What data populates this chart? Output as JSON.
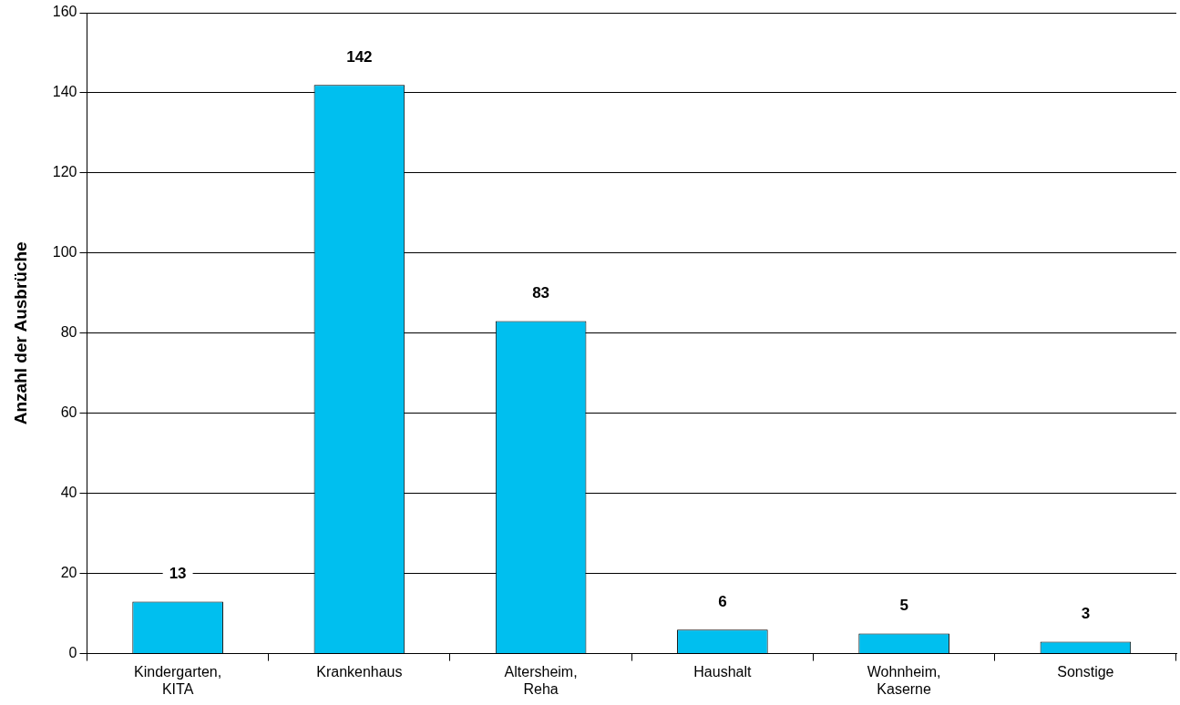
{
  "chart_data": {
    "type": "bar",
    "ylabel": "Anzahl der Ausbrüche",
    "categories": [
      "Kindergarten, KITA",
      "Krankenhaus",
      "Altersheim, Reha",
      "Haushalt",
      "Wohnheim, Kaserne",
      "Sonstige"
    ],
    "values": [
      13,
      142,
      83,
      6,
      5,
      3
    ],
    "color": "#00bfef",
    "ylim": [
      0,
      160
    ],
    "yticks": [
      0,
      20,
      40,
      60,
      80,
      100,
      120,
      140,
      160
    ],
    "grid": "y",
    "data_labels": true
  }
}
